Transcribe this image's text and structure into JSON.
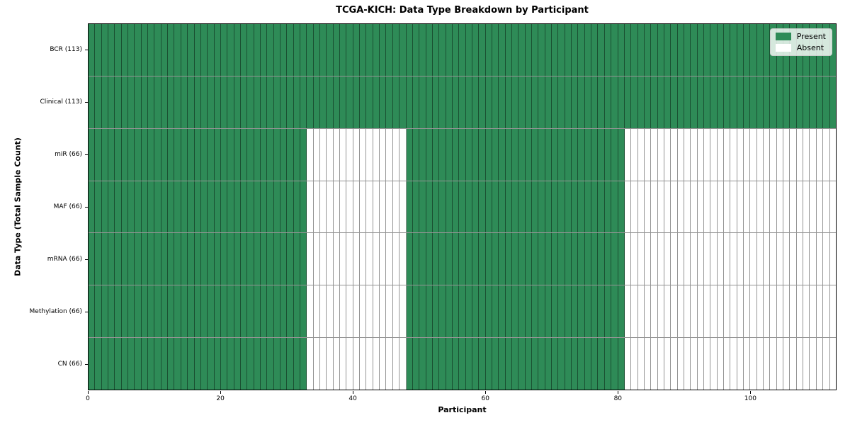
{
  "chart_data": {
    "type": "heatmap",
    "title": "TCGA-KICH: Data Type Breakdown by Participant",
    "xlabel": "Participant",
    "ylabel": "Data Type (Total Sample Count)",
    "x_ticks": [
      0,
      20,
      40,
      60,
      80,
      100
    ],
    "x_range": [
      0,
      113
    ],
    "n_participants": 113,
    "grid": "cell-borders-on",
    "legend_position": "upper right",
    "legend": {
      "entries": [
        {
          "label": "Present",
          "color": "#2e8b57"
        },
        {
          "label": "Absent",
          "color": "#ffffff"
        }
      ]
    },
    "colors": {
      "present": "#2e8b57",
      "absent": "#ffffff",
      "cell_border": "rgba(0,0,0,0.42)",
      "spine": "#000000"
    },
    "rows": [
      {
        "label": "BCR (113)",
        "data_type": "BCR",
        "total_samples": 113,
        "present_ranges": [
          [
            0,
            113
          ]
        ]
      },
      {
        "label": "Clinical (113)",
        "data_type": "Clinical",
        "total_samples": 113,
        "present_ranges": [
          [
            0,
            113
          ]
        ]
      },
      {
        "label": "miR (66)",
        "data_type": "miR",
        "total_samples": 66,
        "present_ranges": [
          [
            0,
            33
          ],
          [
            48,
            81
          ]
        ]
      },
      {
        "label": "MAF (66)",
        "data_type": "MAF",
        "total_samples": 66,
        "present_ranges": [
          [
            0,
            33
          ],
          [
            48,
            81
          ]
        ]
      },
      {
        "label": "mRNA (66)",
        "data_type": "mRNA",
        "total_samples": 66,
        "present_ranges": [
          [
            0,
            33
          ],
          [
            48,
            81
          ]
        ]
      },
      {
        "label": "Methylation (66)",
        "data_type": "Methylation",
        "total_samples": 66,
        "present_ranges": [
          [
            0,
            33
          ],
          [
            48,
            81
          ]
        ]
      },
      {
        "label": "CN (66)",
        "data_type": "CN",
        "total_samples": 66,
        "present_ranges": [
          [
            0,
            33
          ],
          [
            48,
            81
          ]
        ]
      }
    ]
  }
}
